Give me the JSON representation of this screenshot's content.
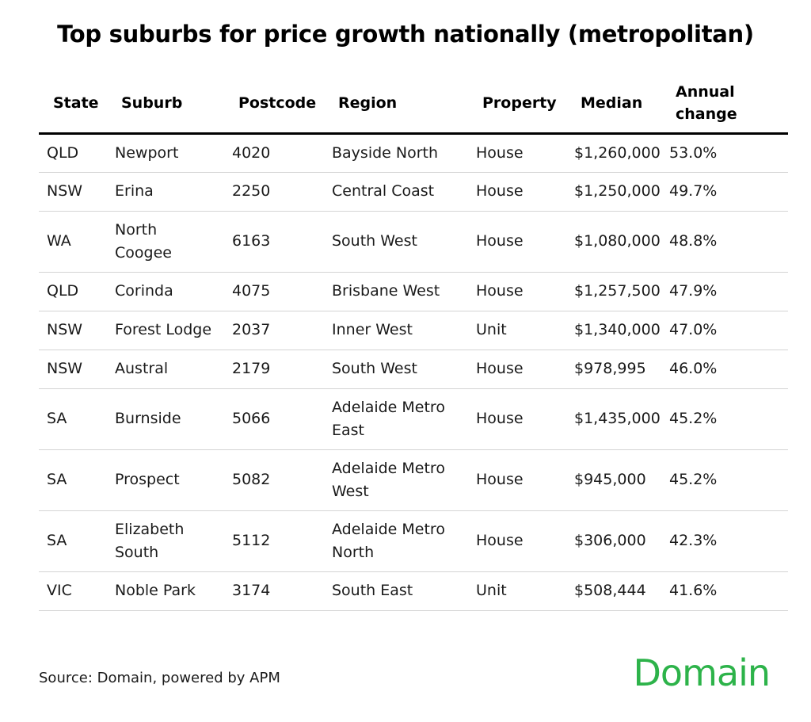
{
  "title": "Top suburbs for price growth nationally (metropolitan)",
  "source": "Source: Domain, powered by APM",
  "logo_text": "Domain",
  "colors": {
    "logo": "#2db34a",
    "header_rule": "#000000",
    "row_rule": "#d4d4d4"
  },
  "chart_data": {
    "type": "table",
    "title": "Top suburbs for price growth nationally (metropolitan)",
    "columns": [
      {
        "key": "state",
        "label": "State"
      },
      {
        "key": "suburb",
        "label": "Suburb"
      },
      {
        "key": "postcode",
        "label": "Postcode"
      },
      {
        "key": "region",
        "label": "Region"
      },
      {
        "key": "property",
        "label": "Property"
      },
      {
        "key": "median",
        "label": "Median"
      },
      {
        "key": "annual_change",
        "label": "Annual change"
      }
    ],
    "rows": [
      {
        "state": "QLD",
        "suburb": "Newport",
        "postcode": "4020",
        "region": "Bayside North",
        "property": "House",
        "median": "$1,260,000",
        "annual_change": "53.0%"
      },
      {
        "state": "NSW",
        "suburb": "Erina",
        "postcode": "2250",
        "region": "Central Coast",
        "property": "House",
        "median": "$1,250,000",
        "annual_change": "49.7%"
      },
      {
        "state": "WA",
        "suburb": "North Coogee",
        "postcode": "6163",
        "region": "South West",
        "property": "House",
        "median": "$1,080,000",
        "annual_change": "48.8%"
      },
      {
        "state": "QLD",
        "suburb": "Corinda",
        "postcode": "4075",
        "region": "Brisbane West",
        "property": "House",
        "median": "$1,257,500",
        "annual_change": "47.9%"
      },
      {
        "state": "NSW",
        "suburb": "Forest Lodge",
        "postcode": "2037",
        "region": "Inner West",
        "property": "Unit",
        "median": "$1,340,000",
        "annual_change": "47.0%"
      },
      {
        "state": "NSW",
        "suburb": "Austral",
        "postcode": "2179",
        "region": "South West",
        "property": "House",
        "median": "$978,995",
        "annual_change": "46.0%"
      },
      {
        "state": "SA",
        "suburb": "Burnside",
        "postcode": "5066",
        "region": "Adelaide Metro East",
        "property": "House",
        "median": "$1,435,000",
        "annual_change": "45.2%"
      },
      {
        "state": "SA",
        "suburb": "Prospect",
        "postcode": "5082",
        "region": "Adelaide Metro West",
        "property": "House",
        "median": "$945,000",
        "annual_change": "45.2%"
      },
      {
        "state": "SA",
        "suburb": "Elizabeth South",
        "postcode": "5112",
        "region": "Adelaide Metro North",
        "property": "House",
        "median": "$306,000",
        "annual_change": "42.3%"
      },
      {
        "state": "VIC",
        "suburb": "Noble Park",
        "postcode": "3174",
        "region": "South East",
        "property": "Unit",
        "median": "$508,444",
        "annual_change": "41.6%"
      }
    ]
  }
}
